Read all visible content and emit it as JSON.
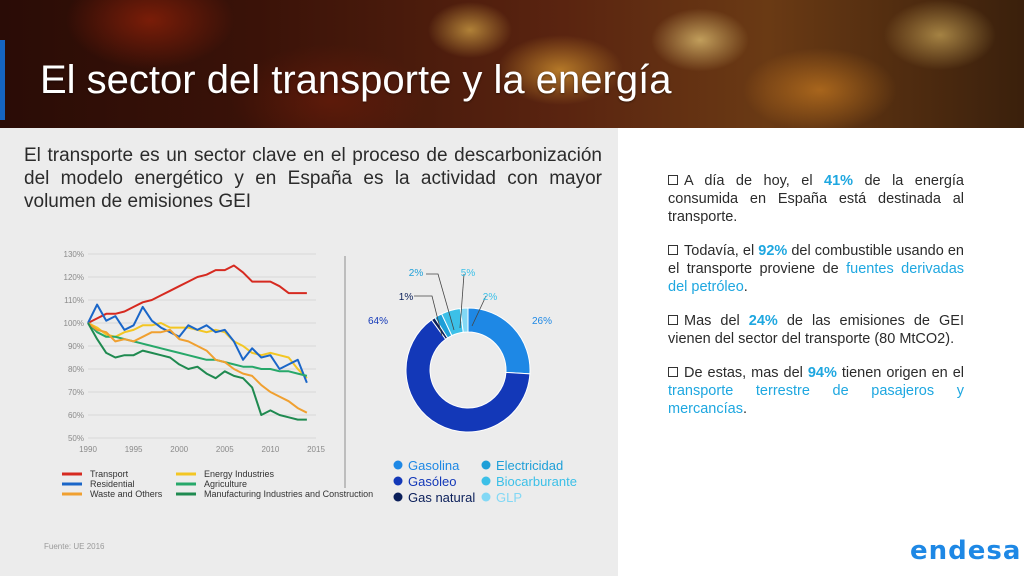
{
  "header": {
    "title": "El sector del transporte y la energía"
  },
  "intro": {
    "text": "El transporte es un sector clave en el proceso de descarbonización del modelo energético y en España es la actividad con mayor volumen de emisiones GEI"
  },
  "source": "Fuente: UE 2016",
  "bullets": [
    {
      "pre": "A día de hoy, el ",
      "highlight": "41%",
      "post": " de la energía consumida en España está destinada al transporte.",
      "link": "",
      "end": ""
    },
    {
      "pre": "Todavía, el ",
      "highlight": "92%",
      "post": " del combustible usando en el transporte proviene de ",
      "link": "fuentes derivadas del petróleo",
      "end": "."
    },
    {
      "pre": "Mas del ",
      "highlight": "24%",
      "post": " de las emisiones de GEI vienen del sector del transporte (80 MtCO2).",
      "link": "",
      "end": ""
    },
    {
      "pre": "De estas, mas del ",
      "highlight": "94%",
      "post": " tienen origen en el ",
      "link": "transporte terrestre de pasajeros y mercancías",
      "end": "."
    }
  ],
  "logo": "endesa",
  "chart_data": [
    {
      "type": "line",
      "x": [
        1990,
        1991,
        1992,
        1993,
        1994,
        1995,
        1996,
        1997,
        1998,
        1999,
        2000,
        2001,
        2002,
        2003,
        2004,
        2005,
        2006,
        2007,
        2008,
        2009,
        2010,
        2011,
        2012,
        2013,
        2014
      ],
      "xticks": [
        "1990",
        "1995",
        "2000",
        "2005",
        "2010",
        "2015"
      ],
      "yticks": [
        "50%",
        "60%",
        "70%",
        "80%",
        "90%",
        "100%",
        "110%",
        "120%",
        "130%"
      ],
      "ylim": [
        50,
        130
      ],
      "xlim": [
        1990,
        2015
      ],
      "grid": true,
      "legend_position": "bottom",
      "series": [
        {
          "name": "Transport",
          "color": "#d62a20",
          "values": [
            100,
            102,
            104,
            104,
            105,
            107,
            109,
            110,
            112,
            114,
            116,
            118,
            120,
            121,
            123,
            123,
            125,
            122,
            118,
            118,
            118,
            116,
            113,
            113,
            113
          ]
        },
        {
          "name": "Energy Industries",
          "color": "#f3c623",
          "values": [
            100,
            98,
            95,
            94,
            96,
            97,
            99,
            99,
            100,
            98,
            98,
            98,
            97,
            96,
            97,
            96,
            92,
            90,
            87,
            86,
            87,
            86,
            85,
            80,
            76
          ]
        },
        {
          "name": "Residential",
          "color": "#1a66c8",
          "values": [
            100,
            108,
            101,
            103,
            97,
            99,
            107,
            101,
            98,
            96,
            94,
            99,
            97,
            99,
            96,
            97,
            92,
            84,
            89,
            85,
            86,
            80,
            82,
            84,
            74
          ]
        },
        {
          "name": "Agriculture",
          "color": "#27a86a",
          "values": [
            100,
            96,
            94,
            94,
            93,
            92,
            91,
            90,
            89,
            88,
            87,
            86,
            85,
            84,
            84,
            83,
            82,
            81,
            81,
            80,
            80,
            79,
            79,
            78,
            77
          ]
        },
        {
          "name": "Waste and Others",
          "color": "#f0a030",
          "values": [
            100,
            97,
            96,
            92,
            93,
            92,
            94,
            96,
            96,
            97,
            93,
            92,
            90,
            88,
            84,
            83,
            80,
            78,
            77,
            73,
            70,
            68,
            66,
            63,
            61
          ]
        },
        {
          "name": "Manufacturing Industries and Construction",
          "color": "#1f8a50",
          "values": [
            100,
            93,
            87,
            85,
            86,
            86,
            88,
            87,
            86,
            85,
            82,
            80,
            81,
            78,
            76,
            79,
            77,
            76,
            72,
            60,
            62,
            60,
            59,
            58,
            58
          ]
        }
      ]
    },
    {
      "type": "pie",
      "donut": true,
      "slices": [
        {
          "name": "Gasolina",
          "value": 26,
          "label": "26%",
          "color": "#1e88e5"
        },
        {
          "name": "Gasóleo",
          "value": 64,
          "label": "64%",
          "color": "#1338b8"
        },
        {
          "name": "Gas natural",
          "value": 1,
          "label": "1%",
          "color": "#0b1f5a"
        },
        {
          "name": "Electricidad",
          "value": 2,
          "label": "2%",
          "color": "#1e9fd8"
        },
        {
          "name": "Biocarburante",
          "value": 5,
          "label": "5%",
          "color": "#3cc0e8"
        },
        {
          "name": "GLP",
          "value": 2,
          "label": "2%",
          "color": "#82d8f5"
        }
      ],
      "legend_position": "bottom"
    }
  ]
}
